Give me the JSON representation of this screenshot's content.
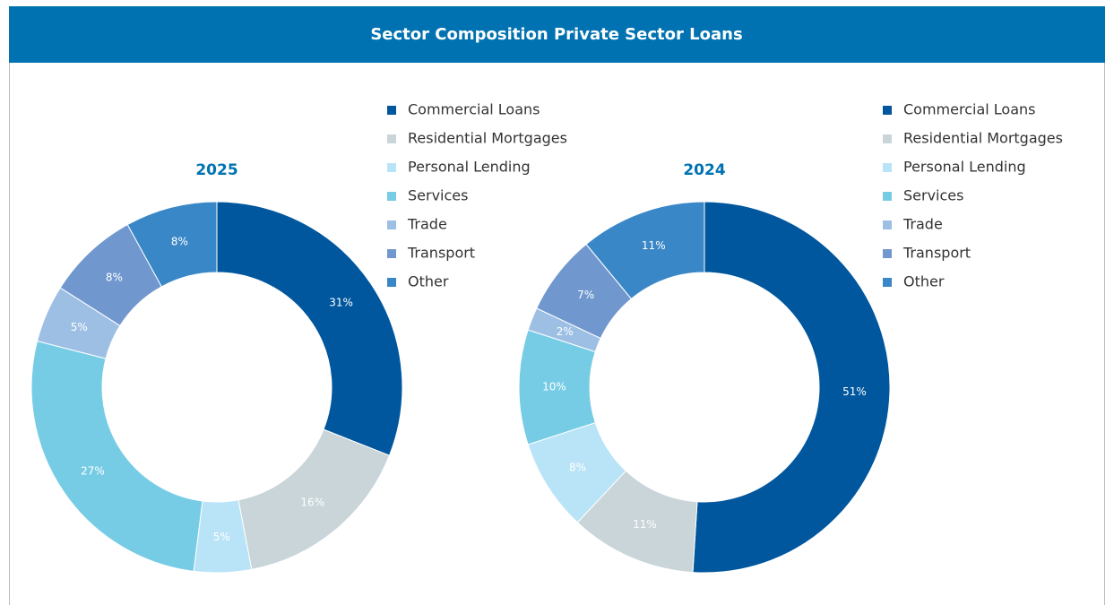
{
  "title": "Sector Composition Private Sector Loans",
  "chart_data": [
    {
      "type": "donut",
      "title": "2025",
      "categories": [
        "Commercial Loans",
        "Residential Mortgages",
        "Personal Lending",
        "Services",
        "Trade",
        "Transport",
        "Other"
      ],
      "values": [
        31,
        16,
        5,
        27,
        5,
        8,
        8
      ],
      "value_labels": [
        "31%",
        "16%",
        "5%",
        "27%",
        "5%",
        "8%",
        "8%"
      ],
      "colors": [
        "#00579e",
        "#c9d5d9",
        "#b9e4f7",
        "#77cce5",
        "#9dbfe4",
        "#7098cf",
        "#3a87c8"
      ]
    },
    {
      "type": "donut",
      "title": "2024",
      "categories": [
        "Commercial Loans",
        "Residential Mortgages",
        "Personal Lending",
        "Services",
        "Trade",
        "Transport",
        "Other"
      ],
      "values": [
        51,
        11,
        8,
        10,
        2,
        7,
        11
      ],
      "value_labels": [
        "51%",
        "11%",
        "8%",
        "10%",
        "2%",
        "7%",
        "11%"
      ],
      "colors": [
        "#00579e",
        "#c9d5d9",
        "#b9e4f7",
        "#77cce5",
        "#9dbfe4",
        "#7098cf",
        "#3a87c8"
      ]
    }
  ]
}
